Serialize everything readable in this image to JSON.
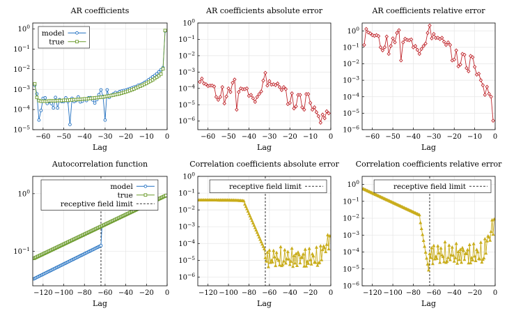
{
  "colors": {
    "model": "#1f6fc1",
    "true": "#6a9a2a",
    "error_red": "#c0272d",
    "error_yellow": "#c9ad1c",
    "limit": "#333333"
  },
  "chart_data": [
    {
      "type": "line",
      "title": "AR coefficients",
      "xlabel": "Lag",
      "ylabel": "",
      "yscale": "log",
      "xlim": [
        -65,
        0
      ],
      "ylim": [
        1e-05,
        2
      ],
      "xticks": [
        -60,
        -50,
        -40,
        -30,
        -20,
        -10,
        0
      ],
      "yticks": [
        1e-05,
        0.0001,
        0.001,
        0.01,
        0.1,
        1
      ],
      "ytick_labels": [
        "10^-5",
        "10^-4",
        "10^-3",
        "10^-2",
        "10^-1",
        "10^0"
      ],
      "grid": true,
      "legend_position": "top-left",
      "series": [
        {
          "name": "model",
          "color": "#1f6fc1",
          "marker": "circle",
          "x": [
            -64,
            -63,
            -62,
            -61,
            -60,
            -59,
            -58,
            -57,
            -56,
            -55,
            -54,
            -53,
            -52,
            -51,
            -50,
            -49,
            -48,
            -47,
            -46,
            -45,
            -44,
            -43,
            -42,
            -41,
            -40,
            -39,
            -38,
            -37,
            -36,
            -35,
            -34,
            -33,
            -32,
            -31,
            -30,
            -29,
            -28,
            -27,
            -26,
            -25,
            -24,
            -23,
            -22,
            -21,
            -20,
            -19,
            -18,
            -17,
            -16,
            -15,
            -14,
            -13,
            -12,
            -11,
            -10,
            -9,
            -8,
            -7,
            -6,
            -5,
            -4,
            -3,
            -2,
            -1
          ],
          "y": [
            0.0016,
            0.0006,
            3e-05,
            9e-05,
            0.00036,
            0.00038,
            0.0002,
            0.00025,
            0.0002,
            0.00012,
            0.0004,
            0.00012,
            0.00031,
            0.00025,
            0.00025,
            0.00038,
            0.00025,
            1.8e-05,
            0.00036,
            0.00025,
            0.00028,
            0.00042,
            0.00024,
            0.00026,
            0.00034,
            0.00028,
            0.00038,
            0.00039,
            0.0003,
            0.00021,
            0.00031,
            0.00055,
            0.00095,
            0.00045,
            3e-05,
            0.00095,
            0.0004,
            0.00052,
            0.0006,
            0.0007,
            0.00065,
            0.00078,
            0.00083,
            0.00088,
            0.00092,
            0.001,
            0.0011,
            0.0012,
            0.0013,
            0.0014,
            0.0016,
            0.0017,
            0.0019,
            0.0022,
            0.0025,
            0.003,
            0.0035,
            0.0042,
            0.005,
            0.006,
            0.0075,
            0.0095,
            0.012,
            0.8
          ]
        },
        {
          "name": "true",
          "color": "#6a9a2a",
          "marker": "square",
          "x": [
            -64,
            -63,
            -62,
            -61,
            -60,
            -59,
            -58,
            -57,
            -56,
            -55,
            -54,
            -53,
            -52,
            -51,
            -50,
            -49,
            -48,
            -47,
            -46,
            -45,
            -44,
            -43,
            -42,
            -41,
            -40,
            -39,
            -38,
            -37,
            -36,
            -35,
            -34,
            -33,
            -32,
            -31,
            -30,
            -29,
            -28,
            -27,
            -26,
            -25,
            -24,
            -23,
            -22,
            -21,
            -20,
            -19,
            -18,
            -17,
            -16,
            -15,
            -14,
            -13,
            -12,
            -11,
            -10,
            -9,
            -8,
            -7,
            -6,
            -5,
            -4,
            -3,
            -2,
            -1
          ],
          "y": [
            0.0019,
            0.0004,
            0.00028,
            0.00026,
            0.00026,
            0.00026,
            0.00026,
            0.00027,
            0.00027,
            0.00027,
            0.00027,
            0.00028,
            0.00028,
            0.00028,
            0.00029,
            0.00029,
            0.00029,
            0.0003,
            0.0003,
            0.00031,
            0.00031,
            0.00032,
            0.00032,
            0.00033,
            0.00034,
            0.00034,
            0.00035,
            0.00036,
            0.00037,
            0.00038,
            0.00039,
            0.0004,
            0.00041,
            0.00042,
            0.00044,
            0.00046,
            0.00048,
            0.0005,
            0.00052,
            0.00055,
            0.00058,
            0.00061,
            0.00065,
            0.0007,
            0.00075,
            0.00081,
            0.00088,
            0.00096,
            0.00106,
            0.00118,
            0.0013,
            0.00145,
            0.0016,
            0.0018,
            0.002,
            0.0023,
            0.0026,
            0.003,
            0.0035,
            0.0041,
            0.0048,
            0.0058,
            0.0105,
            0.85
          ]
        }
      ]
    },
    {
      "type": "line",
      "title": "AR coefficients absolute error",
      "xlabel": "Lag",
      "ylabel": "",
      "yscale": "log",
      "xlim": [
        -65,
        0
      ],
      "ylim": [
        3e-07,
        1
      ],
      "xticks": [
        -60,
        -50,
        -40,
        -30,
        -20,
        -10,
        0
      ],
      "yticks": [
        1e-06,
        1e-05,
        0.0001,
        0.001,
        0.01,
        0.1,
        1
      ],
      "ytick_labels": [
        "10^-6",
        "10^-5",
        "10^-4",
        "10^-3",
        "10^-2",
        "10^-1",
        "10^0"
      ],
      "grid": true,
      "series": [
        {
          "color": "#c0272d",
          "marker": "diamond",
          "x": [
            -64,
            -63,
            -62,
            -61,
            -60,
            -59,
            -58,
            -57,
            -56,
            -55,
            -54,
            -53,
            -52,
            -51,
            -50,
            -49,
            -48,
            -47,
            -46,
            -45,
            -44,
            -43,
            -42,
            -41,
            -40,
            -39,
            -38,
            -37,
            -36,
            -35,
            -34,
            -33,
            -32,
            -31,
            -30,
            -29,
            -28,
            -27,
            -26,
            -25,
            -24,
            -23,
            -22,
            -21,
            -20,
            -19,
            -18,
            -17,
            -16,
            -15,
            -14,
            -13,
            -12,
            -11,
            -10,
            -9,
            -8,
            -7,
            -6,
            -5,
            -4,
            -3,
            -2,
            -1
          ],
          "y": [
            0.00025,
            0.0004,
            0.0002,
            0.00018,
            0.00014,
            0.00015,
            0.00015,
            0.00013,
            3e-05,
            2e-05,
            3e-05,
            0.00012,
            1.2e-05,
            3.2e-05,
            0.0001,
            6e-05,
            0.00022,
            0.00035,
            5e-06,
            6e-05,
            0.0001,
            9e-05,
            9e-05,
            0.0001,
            3.5e-05,
            4e-05,
            2.5e-05,
            1.5e-05,
            3e-05,
            4.5e-05,
            6.5e-05,
            0.0003,
            0.0009,
            0.00015,
            0.00028,
            0.00017,
            0.00018,
            0.00016,
            0.0002,
            0.00012,
            8e-05,
            0.00012,
            9e-05,
            1.1e-05,
            1.3e-05,
            5e-05,
            6e-06,
            8e-06,
            4e-05,
            4e-05,
            7e-06,
            5e-06,
            4.5e-05,
            4.5e-05,
            1.3e-05,
            5e-06,
            7e-06,
            3.5e-06,
            2e-06,
            8e-07,
            2.5e-06,
            1.5e-06,
            4e-06,
            3e-06
          ]
        }
      ]
    },
    {
      "type": "line",
      "title": "AR coefficients relative error",
      "xlabel": "Lag",
      "ylabel": "",
      "yscale": "log",
      "xlim": [
        -65,
        0
      ],
      "ylim": [
        1e-06,
        3
      ],
      "xticks": [
        -60,
        -50,
        -40,
        -30,
        -20,
        -10,
        0
      ],
      "yticks": [
        1e-06,
        1e-05,
        0.0001,
        0.001,
        0.01,
        0.1,
        1
      ],
      "ytick_labels": [
        "10^-6",
        "10^-5",
        "10^-4",
        "10^-3",
        "10^-2",
        "10^-1",
        "10^0"
      ],
      "grid": true,
      "series": [
        {
          "color": "#c0272d",
          "marker": "diamond",
          "x": [
            -64,
            -63,
            -62,
            -61,
            -60,
            -59,
            -58,
            -57,
            -56,
            -55,
            -54,
            -53,
            -52,
            -51,
            -50,
            -49,
            -48,
            -47,
            -46,
            -45,
            -44,
            -43,
            -42,
            -41,
            -40,
            -39,
            -38,
            -37,
            -36,
            -35,
            -34,
            -33,
            -32,
            -31,
            -30,
            -29,
            -28,
            -27,
            -26,
            -25,
            -24,
            -23,
            -22,
            -21,
            -20,
            -19,
            -18,
            -17,
            -16,
            -15,
            -14,
            -13,
            -12,
            -11,
            -10,
            -9,
            -8,
            -7,
            -6,
            -5,
            -4,
            -3,
            -2,
            -1
          ],
          "y": [
            0.14,
            1.3,
            0.8,
            0.7,
            0.55,
            0.5,
            0.55,
            0.48,
            0.1,
            0.065,
            0.1,
            0.45,
            0.04,
            0.12,
            0.35,
            0.2,
            0.75,
            1.1,
            0.016,
            0.2,
            0.33,
            0.28,
            0.27,
            0.3,
            0.1,
            0.12,
            0.07,
            0.04,
            0.08,
            0.12,
            0.17,
            0.75,
            2.1,
            0.35,
            0.65,
            0.37,
            0.38,
            0.32,
            0.38,
            0.22,
            0.14,
            0.2,
            0.14,
            0.016,
            0.018,
            0.065,
            0.007,
            0.009,
            0.04,
            0.035,
            0.0055,
            0.0035,
            0.03,
            0.025,
            0.0065,
            0.0022,
            0.0025,
            0.001,
            0.0005,
            0.00013,
            0.0004,
            0.00015,
            0.0001,
            3.5e-06
          ]
        }
      ]
    },
    {
      "type": "line",
      "title": "Autocorrelation function",
      "xlabel": "Lag",
      "ylabel": "",
      "yscale": "log",
      "xlim": [
        -130,
        0
      ],
      "ylim": [
        0.025,
        2
      ],
      "xticks": [
        -120,
        -100,
        -80,
        -60,
        -40,
        -20,
        0
      ],
      "yticks": [
        0.1,
        1
      ],
      "ytick_labels": [
        "10^-1",
        "10^0"
      ],
      "grid": true,
      "legend_position": "top-left",
      "vline": {
        "x": -64,
        "label": "receptive field limit"
      },
      "series": [
        {
          "name": "model",
          "color": "#1f6fc1",
          "marker": "circle",
          "curve": "model_acf"
        },
        {
          "name": "true",
          "color": "#6a9a2a",
          "marker": "square",
          "curve": "true_acf"
        }
      ]
    },
    {
      "type": "line",
      "title": "Correlation coefficients absolute error",
      "xlabel": "Lag",
      "ylabel": "",
      "yscale": "log",
      "xlim": [
        -130,
        0
      ],
      "ylim": [
        3e-07,
        1
      ],
      "xticks": [
        -120,
        -100,
        -80,
        -60,
        -40,
        -20,
        0
      ],
      "yticks": [
        1e-06,
        1e-05,
        0.0001,
        0.001,
        0.01,
        0.1,
        1
      ],
      "ytick_labels": [
        "10^-6",
        "10^-5",
        "10^-4",
        "10^-3",
        "10^-2",
        "10^-1",
        "10^0"
      ],
      "grid": true,
      "legend_position": "top-right",
      "vline": {
        "x": -64,
        "label": "receptive field limit"
      },
      "series": [
        {
          "color": "#c9ad1c",
          "marker": "triangle",
          "curve": "abs_err"
        }
      ]
    },
    {
      "type": "line",
      "title": "Correlation coefficients relative error",
      "xlabel": "Lag",
      "ylabel": "",
      "yscale": "log",
      "xlim": [
        -130,
        0
      ],
      "ylim": [
        1e-06,
        3
      ],
      "xticks": [
        -120,
        -100,
        -80,
        -60,
        -40,
        -20,
        0
      ],
      "yticks": [
        1e-06,
        1e-05,
        0.0001,
        0.001,
        0.01,
        0.1,
        1
      ],
      "ytick_labels": [
        "10^-6",
        "10^-5",
        "10^-4",
        "10^-3",
        "10^-2",
        "10^-1",
        "10^0"
      ],
      "grid": true,
      "legend_position": "top-right",
      "vline": {
        "x": -64,
        "label": "receptive field limit"
      },
      "series": [
        {
          "color": "#c9ad1c",
          "marker": "triangle",
          "curve": "rel_err"
        }
      ]
    }
  ]
}
